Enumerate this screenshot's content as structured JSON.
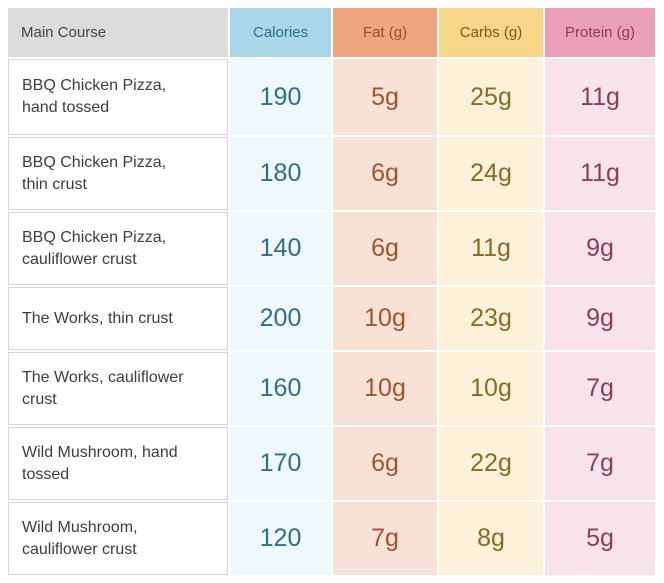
{
  "headers": {
    "name": "Main Course",
    "calories": "Calories",
    "fat": "Fat (g)",
    "carbs": "Carbs (g)",
    "protein": "Protein (g)"
  },
  "rows": [
    {
      "name": "BBQ Chicken Pizza, hand tossed",
      "calories": "190",
      "fat": "5g",
      "carbs": "25g",
      "protein": "11g"
    },
    {
      "name": "BBQ Chicken Pizza, thin crust",
      "calories": "180",
      "fat": "6g",
      "carbs": "24g",
      "protein": "11g"
    },
    {
      "name": "BBQ Chicken Pizza, cauliflower crust",
      "calories": "140",
      "fat": "6g",
      "carbs": "11g",
      "protein": "9g"
    },
    {
      "name": "The Works, thin crust",
      "calories": "200",
      "fat": "10g",
      "carbs": "23g",
      "protein": "9g"
    },
    {
      "name": "The Works, cauliflower crust",
      "calories": "160",
      "fat": "10g",
      "carbs": "10g",
      "protein": "7g"
    },
    {
      "name": "Wild Mushroom, hand tossed",
      "calories": "170",
      "fat": "6g",
      "carbs": "22g",
      "protein": "7g"
    },
    {
      "name": "Wild Mushroom, cauliflower crust",
      "calories": "120",
      "fat": "7g",
      "carbs": "8g",
      "protein": "5g"
    }
  ],
  "colors": {
    "calories_header": "#a9d7ea",
    "fat_header": "#eea67e",
    "carbs_header": "#f7d68a",
    "protein_header": "#eb9fb8",
    "name_header": "#dcdcdc"
  }
}
